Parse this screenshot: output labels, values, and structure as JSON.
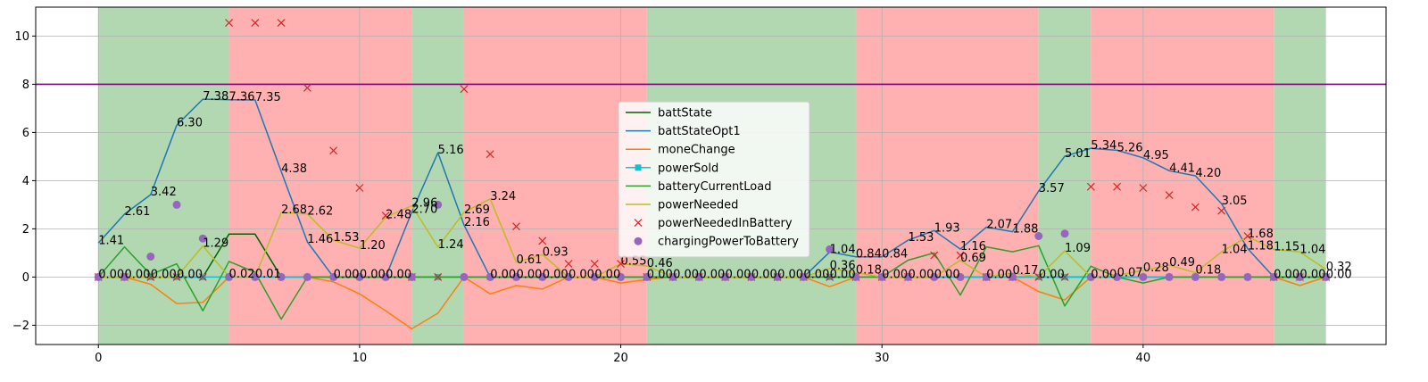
{
  "chart_data": {
    "type": "line",
    "title": "",
    "xlabel": "",
    "ylabel": "",
    "xlim": [
      -2.4,
      49.3
    ],
    "ylim": [
      -2.8,
      11.2
    ],
    "xticks": [
      0,
      10,
      20,
      30,
      40
    ],
    "yticks": [
      -2,
      0,
      2,
      4,
      6,
      8,
      10
    ],
    "grid": true,
    "legend_position": "center",
    "hline": {
      "y": 8,
      "color": "#800080"
    },
    "regions": [
      {
        "x0": 0,
        "x1": 5,
        "color": "#b2d8b2"
      },
      {
        "x0": 5,
        "x1": 12,
        "color": "#ffb0b0"
      },
      {
        "x0": 12,
        "x1": 14,
        "color": "#b2d8b2"
      },
      {
        "x0": 14,
        "x1": 21,
        "color": "#ffb0b0"
      },
      {
        "x0": 21,
        "x1": 29,
        "color": "#b2d8b2"
      },
      {
        "x0": 29,
        "x1": 36,
        "color": "#ffb0b0"
      },
      {
        "x0": 36,
        "x1": 38,
        "color": "#b2d8b2"
      },
      {
        "x0": 38,
        "x1": 45,
        "color": "#ffb0b0"
      },
      {
        "x0": 45,
        "x1": 47,
        "color": "#b2d8b2"
      }
    ],
    "x": [
      0,
      1,
      2,
      3,
      4,
      5,
      6,
      7,
      8,
      9,
      10,
      11,
      12,
      13,
      14,
      15,
      16,
      17,
      18,
      19,
      20,
      21,
      22,
      23,
      24,
      25,
      26,
      27,
      28,
      29,
      30,
      31,
      32,
      33,
      34,
      35,
      36,
      37,
      38,
      39,
      40,
      41,
      42,
      43,
      44,
      45,
      46,
      47
    ],
    "series": [
      {
        "name": "battState",
        "color": "#006400",
        "style": "line",
        "values": [
          0,
          0,
          0,
          0,
          0,
          1.78,
          1.78,
          0,
          0,
          0,
          0,
          0,
          0,
          0,
          0,
          0,
          0,
          0,
          0,
          0,
          0,
          0,
          0,
          0,
          0,
          0,
          0,
          0,
          0,
          0,
          0,
          0,
          0,
          0,
          0,
          0,
          0,
          0,
          0,
          0,
          0,
          0,
          0,
          0,
          0,
          0,
          0,
          0
        ]
      },
      {
        "name": "battStateOpt1",
        "color": "#1f77b4",
        "style": "line",
        "values": [
          1.41,
          2.61,
          3.42,
          6.3,
          7.38,
          7.36,
          7.35,
          4.38,
          1.46,
          0,
          0,
          0,
          2.7,
          5.16,
          2.16,
          0,
          0,
          0,
          0,
          0,
          0,
          0,
          0,
          0,
          0,
          0,
          0,
          0,
          1.04,
          0.84,
          0.84,
          1.53,
          1.93,
          1.16,
          2.07,
          1.88,
          3.57,
          5.01,
          5.34,
          5.26,
          4.95,
          4.41,
          4.2,
          3.05,
          1.18,
          0,
          0,
          0
        ]
      },
      {
        "name": "moneChange",
        "color": "#ff7f0e",
        "style": "line",
        "values": [
          0,
          0,
          -0.3,
          -1.1,
          -1.05,
          0,
          0,
          0,
          0,
          -0.2,
          -0.7,
          -1.4,
          -2.15,
          -1.5,
          0,
          -0.7,
          -0.35,
          -0.5,
          0,
          0,
          -0.25,
          -0.1,
          0,
          0,
          0,
          0,
          0,
          0,
          -0.4,
          0,
          0,
          0,
          0,
          0,
          0,
          0,
          -0.6,
          -0.95,
          0,
          0,
          0,
          0,
          0,
          0,
          0,
          0,
          -0.35,
          0
        ]
      },
      {
        "name": "powerSold",
        "color": "#17becf",
        "style": "line-marker",
        "values": [
          0,
          0,
          0,
          0,
          0,
          0,
          0,
          0,
          0,
          0,
          0,
          0,
          0,
          0,
          0,
          0,
          0,
          0,
          0,
          0,
          0,
          0,
          0,
          0,
          0,
          0,
          0,
          0,
          0,
          0,
          0,
          0,
          0,
          0,
          0,
          0,
          0,
          0,
          0,
          0,
          0,
          0,
          0,
          0,
          0,
          0,
          0,
          0
        ]
      },
      {
        "name": "batteryCurrentLoad",
        "color": "#2ca02c",
        "style": "line",
        "values": [
          0,
          1.25,
          0.1,
          0.55,
          -1.4,
          0.65,
          0.2,
          -1.75,
          0,
          0,
          0,
          0,
          0,
          0,
          0,
          0,
          0,
          0,
          0,
          0,
          0,
          0,
          0,
          0,
          0,
          0,
          0,
          0,
          0,
          0,
          0,
          0.7,
          1.0,
          -0.75,
          1.25,
          1.05,
          1.3,
          -1.2,
          0.45,
          0,
          -0.25,
          0,
          0,
          0,
          0,
          0,
          0,
          0
        ]
      },
      {
        "name": "powerNeeded",
        "color": "#bcbd22",
        "style": "line",
        "values": [
          0,
          0,
          0,
          0,
          1.29,
          0.02,
          0.01,
          2.68,
          2.62,
          1.53,
          1.2,
          2.48,
          2.96,
          1.24,
          2.69,
          3.24,
          0.61,
          0.93,
          0,
          0,
          0.55,
          0.46,
          0,
          0,
          0,
          0,
          0,
          0,
          0.36,
          0.18,
          0,
          0,
          0,
          0.69,
          0,
          0.17,
          0,
          1.09,
          0,
          0.07,
          0.28,
          0.49,
          0.18,
          1.04,
          1.68,
          1.15,
          1.04,
          0.32
        ]
      },
      {
        "name": "powerNeededInBattery",
        "color": "#d62728",
        "style": "marker-x",
        "values": [
          0,
          0,
          0,
          0,
          0,
          10.55,
          10.55,
          10.55,
          7.85,
          5.25,
          3.7,
          2.55,
          0,
          0,
          7.8,
          5.1,
          2.1,
          1.5,
          0.55,
          0.55,
          0.55,
          0,
          0,
          0,
          0,
          0,
          0,
          0,
          0,
          0,
          0,
          0,
          0.9,
          0.9,
          0,
          0,
          0,
          0,
          3.75,
          3.75,
          3.7,
          3.4,
          2.9,
          2.75,
          1.7,
          0,
          0,
          0
        ]
      },
      {
        "name": "chargingPowerToBattery",
        "color": "#9467bd",
        "style": "marker-o",
        "values": [
          0,
          0,
          0.85,
          3.0,
          1.6,
          0,
          0,
          0,
          0,
          0,
          0,
          0,
          0,
          3.0,
          0,
          0,
          0,
          0,
          0,
          0,
          0,
          0,
          0,
          0,
          0,
          0,
          0,
          0,
          1.15,
          0,
          0,
          0,
          0,
          0,
          0,
          0,
          1.7,
          1.8,
          0,
          0,
          0,
          0,
          0,
          0,
          0,
          0,
          0,
          0
        ]
      }
    ],
    "annotations": [
      {
        "x": 0,
        "y": 1.41,
        "text": "1.41"
      },
      {
        "x": 1,
        "y": 2.61,
        "text": "2.61"
      },
      {
        "x": 2,
        "y": 3.42,
        "text": "3.42"
      },
      {
        "x": 3,
        "y": 6.3,
        "text": "6.30"
      },
      {
        "x": 4,
        "y": 7.38,
        "text": "7.38"
      },
      {
        "x": 5,
        "y": 7.36,
        "text": "7.36"
      },
      {
        "x": 6,
        "y": 7.35,
        "text": "7.35"
      },
      {
        "x": 7,
        "y": 4.38,
        "text": "4.38"
      },
      {
        "x": 8,
        "y": 1.46,
        "text": "1.46"
      },
      {
        "x": 12,
        "y": 2.7,
        "text": "2.70"
      },
      {
        "x": 13,
        "y": 5.16,
        "text": "5.16"
      },
      {
        "x": 14,
        "y": 2.16,
        "text": "2.16"
      },
      {
        "x": 28,
        "y": 1.04,
        "text": "1.04"
      },
      {
        "x": 29,
        "y": 0.84,
        "text": "0.84"
      },
      {
        "x": 30,
        "y": 0.84,
        "text": "0.84"
      },
      {
        "x": 31,
        "y": 1.53,
        "text": "1.53"
      },
      {
        "x": 32,
        "y": 1.93,
        "text": "1.93"
      },
      {
        "x": 33,
        "y": 1.16,
        "text": "1.16"
      },
      {
        "x": 34,
        "y": 2.07,
        "text": "2.07"
      },
      {
        "x": 35,
        "y": 1.88,
        "text": "1.88"
      },
      {
        "x": 36,
        "y": 3.57,
        "text": "3.57"
      },
      {
        "x": 37,
        "y": 5.01,
        "text": "5.01"
      },
      {
        "x": 38,
        "y": 5.34,
        "text": "5.34"
      },
      {
        "x": 39,
        "y": 5.26,
        "text": "5.26"
      },
      {
        "x": 40,
        "y": 4.95,
        "text": "4.95"
      },
      {
        "x": 41,
        "y": 4.41,
        "text": "4.41"
      },
      {
        "x": 42,
        "y": 4.2,
        "text": "4.20"
      },
      {
        "x": 43,
        "y": 3.05,
        "text": "3.05"
      },
      {
        "x": 44,
        "y": 1.18,
        "text": "1.18"
      },
      {
        "x": 0,
        "y": 0,
        "text": "0.00"
      },
      {
        "x": 1,
        "y": 0,
        "text": "0.00"
      },
      {
        "x": 2,
        "y": 0,
        "text": "0.00"
      },
      {
        "x": 3,
        "y": 0,
        "text": "0.00"
      },
      {
        "x": 4,
        "y": 1.29,
        "text": "1.29"
      },
      {
        "x": 5,
        "y": 0.02,
        "text": "0.02"
      },
      {
        "x": 6,
        "y": 0.01,
        "text": "0.01"
      },
      {
        "x": 7,
        "y": 2.68,
        "text": "2.68"
      },
      {
        "x": 8,
        "y": 2.62,
        "text": "2.62"
      },
      {
        "x": 9,
        "y": 1.53,
        "text": "1.53"
      },
      {
        "x": 10,
        "y": 1.2,
        "text": "1.20"
      },
      {
        "x": 11,
        "y": 2.48,
        "text": "2.48"
      },
      {
        "x": 12,
        "y": 2.96,
        "text": "2.96"
      },
      {
        "x": 13,
        "y": 1.24,
        "text": "1.24"
      },
      {
        "x": 14,
        "y": 2.69,
        "text": "2.69"
      },
      {
        "x": 15,
        "y": 3.24,
        "text": "3.24"
      },
      {
        "x": 16,
        "y": 0.61,
        "text": "0.61"
      },
      {
        "x": 17,
        "y": 0.93,
        "text": "0.93"
      },
      {
        "x": 20,
        "y": 0.55,
        "text": "0.55"
      },
      {
        "x": 21,
        "y": 0.46,
        "text": "0.46"
      },
      {
        "x": 28,
        "y": 0.36,
        "text": "0.36"
      },
      {
        "x": 29,
        "y": 0.18,
        "text": "0.18"
      },
      {
        "x": 33,
        "y": 0.69,
        "text": "0.69"
      },
      {
        "x": 35,
        "y": 0.17,
        "text": "0.17"
      },
      {
        "x": 37,
        "y": 1.09,
        "text": "1.09"
      },
      {
        "x": 39,
        "y": 0.07,
        "text": "0.07"
      },
      {
        "x": 40,
        "y": 0.28,
        "text": "0.28"
      },
      {
        "x": 41,
        "y": 0.49,
        "text": "0.49"
      },
      {
        "x": 42,
        "y": 0.18,
        "text": "0.18"
      },
      {
        "x": 43,
        "y": 1.04,
        "text": "1.04"
      },
      {
        "x": 44,
        "y": 1.68,
        "text": "1.68"
      },
      {
        "x": 45,
        "y": 1.15,
        "text": "1.15"
      },
      {
        "x": 46,
        "y": 1.04,
        "text": "1.04"
      },
      {
        "x": 47,
        "y": 0.32,
        "text": "0.32"
      },
      {
        "x": 9,
        "y": 0,
        "text": "0.00"
      },
      {
        "x": 10,
        "y": 0,
        "text": "0.00"
      },
      {
        "x": 11,
        "y": 0,
        "text": "0.00"
      },
      {
        "x": 15,
        "y": 0,
        "text": "0.00"
      },
      {
        "x": 16,
        "y": 0,
        "text": "0.00"
      },
      {
        "x": 17,
        "y": 0,
        "text": "0.00"
      },
      {
        "x": 18,
        "y": 0,
        "text": "0.00"
      },
      {
        "x": 19,
        "y": 0,
        "text": "0.00"
      },
      {
        "x": 21,
        "y": 0,
        "text": "0.00"
      },
      {
        "x": 22,
        "y": 0,
        "text": "0.00"
      },
      {
        "x": 23,
        "y": 0,
        "text": "0.00"
      },
      {
        "x": 24,
        "y": 0,
        "text": "0.00"
      },
      {
        "x": 25,
        "y": 0,
        "text": "0.00"
      },
      {
        "x": 26,
        "y": 0,
        "text": "0.00"
      },
      {
        "x": 27,
        "y": 0,
        "text": "0.00"
      },
      {
        "x": 28,
        "y": 0,
        "text": "0.00"
      },
      {
        "x": 30,
        "y": 0,
        "text": "0.00"
      },
      {
        "x": 31,
        "y": 0,
        "text": "0.00"
      },
      {
        "x": 32,
        "y": 0,
        "text": "0.00"
      },
      {
        "x": 34,
        "y": 0,
        "text": "0.00"
      },
      {
        "x": 36,
        "y": 0,
        "text": "0.00"
      },
      {
        "x": 38,
        "y": 0,
        "text": "0.00"
      },
      {
        "x": 45,
        "y": 0,
        "text": "0.00"
      },
      {
        "x": 46,
        "y": 0,
        "text": "0.00"
      },
      {
        "x": 47,
        "y": 0,
        "text": "0.00"
      }
    ]
  }
}
